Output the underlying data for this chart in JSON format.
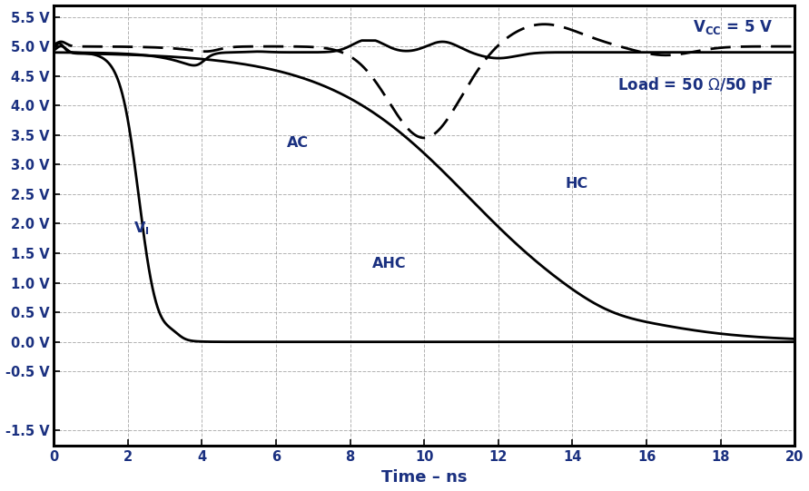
{
  "xlabel": "Time – ns",
  "xlim": [
    0,
    20
  ],
  "ylim": [
    -1.75,
    5.7
  ],
  "yticks": [
    -1.5,
    -0.5,
    0.0,
    0.5,
    1.0,
    1.5,
    2.0,
    2.5,
    3.0,
    3.5,
    4.0,
    4.5,
    5.0,
    5.5
  ],
  "ytick_labels": [
    "-1.5 V",
    "-0.5 V",
    "0.0 V",
    "0.5 V",
    "1.0 V",
    "1.5 V",
    "2.0 V",
    "2.5 V",
    "3.0 V",
    "3.5 V",
    "4.0 V",
    "4.5 V",
    "5.0 V",
    "5.5 V"
  ],
  "xticks": [
    0,
    2,
    4,
    6,
    8,
    10,
    12,
    14,
    16,
    18,
    20
  ],
  "grid_color": "#999999",
  "background_color": "#ffffff",
  "line_color": "#000000",
  "label_color": "#1a3080",
  "text_color": "#1a3080"
}
